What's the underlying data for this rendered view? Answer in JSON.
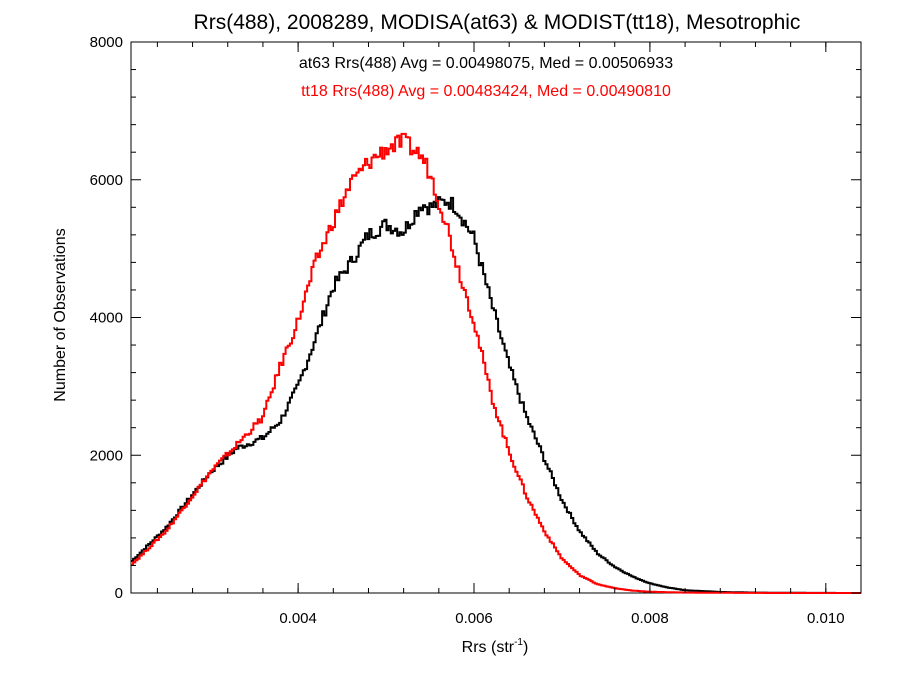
{
  "chart_data": {
    "type": "line",
    "title": "Rrs(488), 2008289, MODISA(at63) & MODIST(tt18), Mesotrophic",
    "xlabel_main": "Rrs (str",
    "xlabel_sup": "-1",
    "xlabel_close": ")",
    "ylabel": "Number of Observations",
    "xlim": [
      0.0021,
      0.0104
    ],
    "ylim": [
      0,
      8000
    ],
    "xticks": [
      0.004,
      0.006,
      0.008,
      0.01
    ],
    "xtick_labels": [
      "0.004",
      "0.006",
      "0.008",
      "0.010"
    ],
    "yticks": [
      0,
      2000,
      4000,
      6000,
      8000
    ],
    "ytick_labels": [
      "0",
      "2000",
      "4000",
      "6000",
      "8000"
    ],
    "grid": false,
    "annotations": [
      {
        "text": "at63 Rrs(488) Avg = 0.00498075, Med = 0.00506933",
        "color": "#000000"
      },
      {
        "text": "tt18 Rrs(488) Avg = 0.00483424, Med = 0.00490810",
        "color": "#ff0000"
      }
    ],
    "series": [
      {
        "name": "at63",
        "color": "#000000",
        "x": [
          0.0021,
          0.0025,
          0.003,
          0.0033,
          0.0036,
          0.0038,
          0.004,
          0.0042,
          0.0044,
          0.0046,
          0.0048,
          0.005,
          0.0052,
          0.0054,
          0.0055,
          0.0057,
          0.0058,
          0.006,
          0.0062,
          0.0064,
          0.0066,
          0.0068,
          0.007,
          0.0072,
          0.0074,
          0.0076,
          0.0078,
          0.008,
          0.0082,
          0.0084,
          0.0088,
          0.0092,
          0.0096,
          0.01,
          0.0104
        ],
        "y": [
          450,
          950,
          1750,
          2100,
          2250,
          2500,
          3000,
          3700,
          4450,
          4800,
          5200,
          5350,
          5250,
          5650,
          5600,
          5700,
          5600,
          5150,
          4200,
          3300,
          2550,
          1950,
          1350,
          900,
          580,
          380,
          240,
          140,
          80,
          40,
          15,
          6,
          3,
          1,
          0
        ]
      },
      {
        "name": "tt18",
        "color": "#ff0000",
        "x": [
          0.0021,
          0.0025,
          0.003,
          0.0033,
          0.0036,
          0.0038,
          0.004,
          0.0042,
          0.0044,
          0.0046,
          0.0048,
          0.005,
          0.0051,
          0.0052,
          0.0053,
          0.0054,
          0.0055,
          0.0057,
          0.0058,
          0.006,
          0.0062,
          0.0064,
          0.0066,
          0.0068,
          0.007,
          0.0072,
          0.0074,
          0.0076,
          0.0078,
          0.008,
          0.0084,
          0.0088,
          0.0092,
          0.0096,
          0.01,
          0.0104
        ],
        "y": [
          400,
          900,
          1750,
          2150,
          2550,
          3300,
          3950,
          4800,
          5400,
          5950,
          6250,
          6450,
          6500,
          6550,
          6450,
          6350,
          6100,
          5300,
          4800,
          3950,
          2850,
          2050,
          1400,
          900,
          500,
          260,
          130,
          70,
          35,
          18,
          6,
          3,
          1,
          0,
          0,
          0
        ]
      }
    ]
  }
}
